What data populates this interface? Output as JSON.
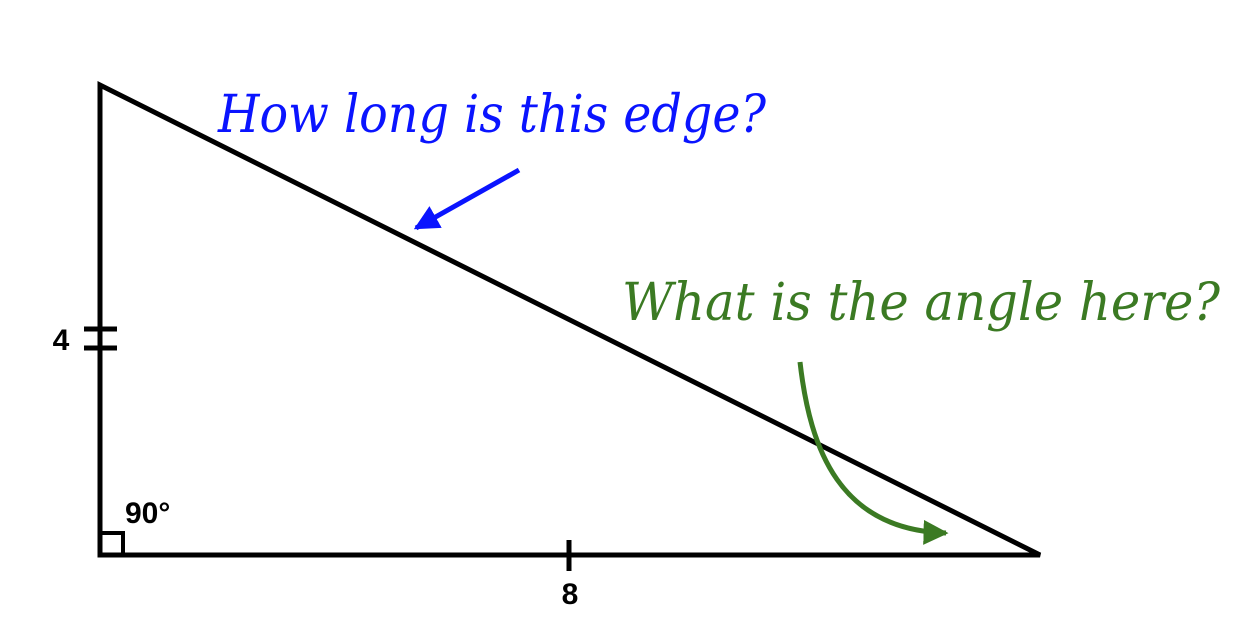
{
  "diagram": {
    "labels": {
      "vertical_side": "4",
      "horizontal_side": "8",
      "right_angle": "90°"
    },
    "annotations": {
      "hypotenuse_question": "How long is this edge?",
      "angle_question": "What is the angle here?"
    },
    "colors": {
      "triangle": "#000000",
      "hypotenuse_annotation": "#0a14ff",
      "angle_annotation": "#3b7a23"
    }
  }
}
